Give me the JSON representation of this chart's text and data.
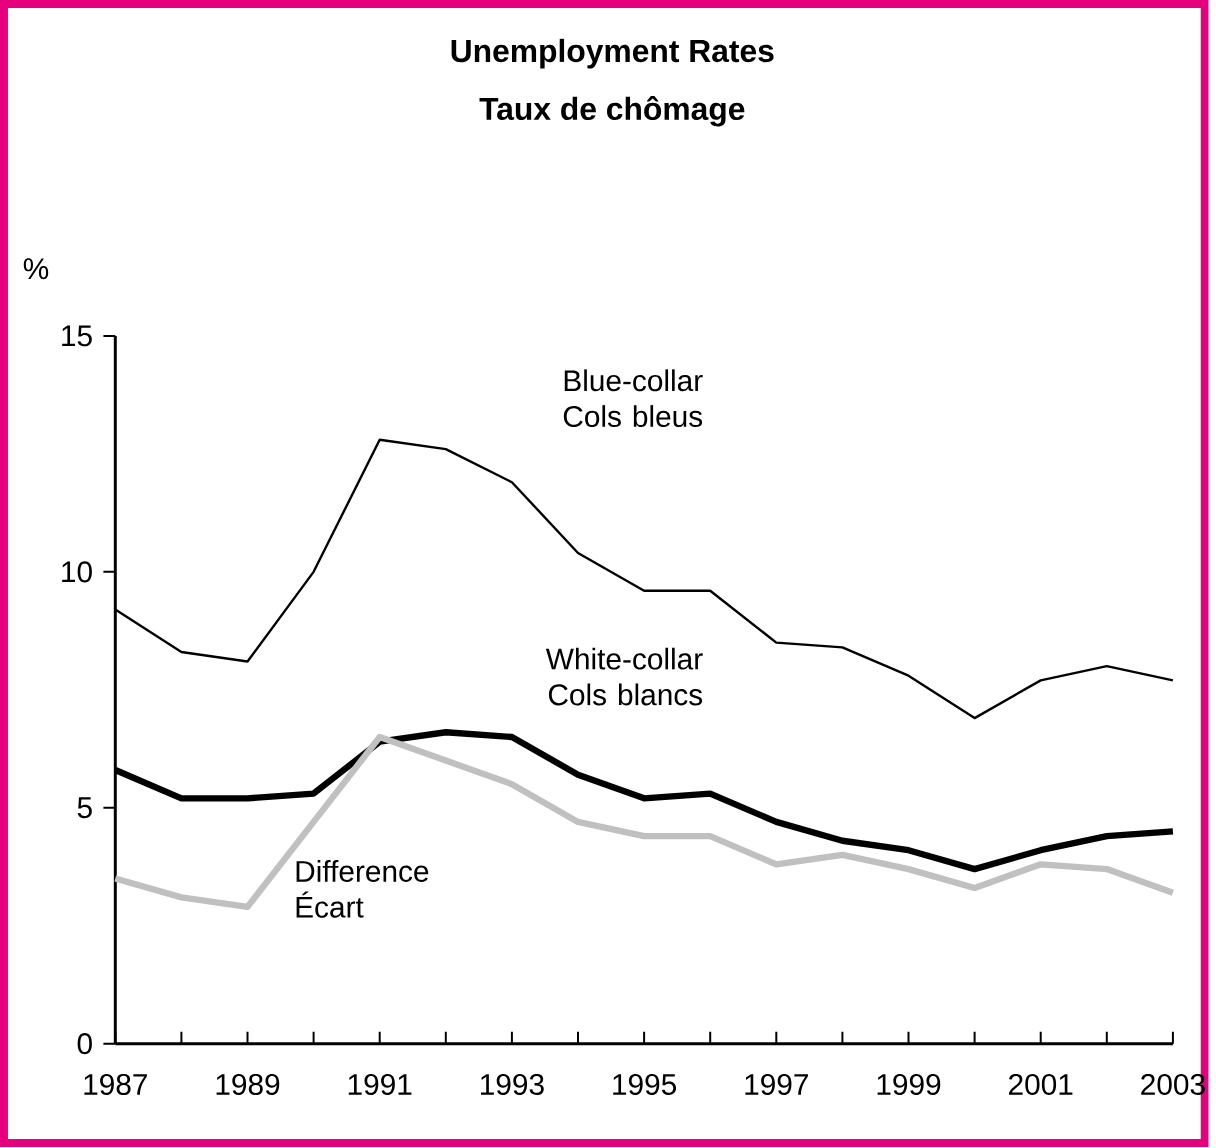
{
  "chart_data": {
    "type": "line",
    "title": "Unemployment Rates",
    "subtitle": "Taux de chômage",
    "ylabel": "%",
    "x": [
      1987,
      1988,
      1989,
      1990,
      1991,
      1992,
      1993,
      1994,
      1995,
      1996,
      1997,
      1998,
      1999,
      2000,
      2001,
      2002,
      2003
    ],
    "xlim": [
      1987,
      2003
    ],
    "xticks": [
      1987,
      {
        "value": 1988,
        "label": null
      },
      1989,
      {
        "value": 1990,
        "label": null
      },
      1991,
      {
        "value": 1992,
        "label": null
      },
      1993,
      {
        "value": 1994,
        "label": null
      },
      1995,
      {
        "value": 1996,
        "label": null
      },
      1997,
      {
        "value": 1998,
        "label": null
      },
      1999,
      {
        "value": 2000,
        "label": null
      },
      2001,
      {
        "value": 2002,
        "label": null
      },
      2003
    ],
    "ylim": [
      0,
      15
    ],
    "yticks": [
      0,
      5,
      10,
      15
    ],
    "series": [
      {
        "name": "Blue-collar Cols bleus",
        "color": "#000000",
        "values": [
          9.2,
          8.3,
          8.1,
          10.0,
          12.8,
          12.6,
          11.9,
          10.4,
          9.6,
          9.6,
          8.5,
          8.4,
          7.8,
          6.9,
          7.7,
          8.0,
          7.7
        ]
      },
      {
        "name": "White-collar Cols blancs",
        "color": "#000000",
        "values": [
          5.8,
          5.2,
          5.2,
          5.3,
          6.4,
          6.6,
          6.5,
          5.7,
          5.2,
          5.3,
          4.7,
          4.3,
          4.1,
          3.7,
          4.1,
          4.4,
          4.5
        ]
      },
      {
        "name": "Difference Écart",
        "color": "#c0c0c0",
        "values": [
          3.5,
          3.1,
          2.9,
          4.7,
          6.5,
          6.0,
          5.5,
          4.7,
          4.4,
          4.4,
          3.8,
          4.0,
          3.7,
          3.3,
          3.8,
          3.7,
          3.2
        ]
      }
    ]
  }
}
